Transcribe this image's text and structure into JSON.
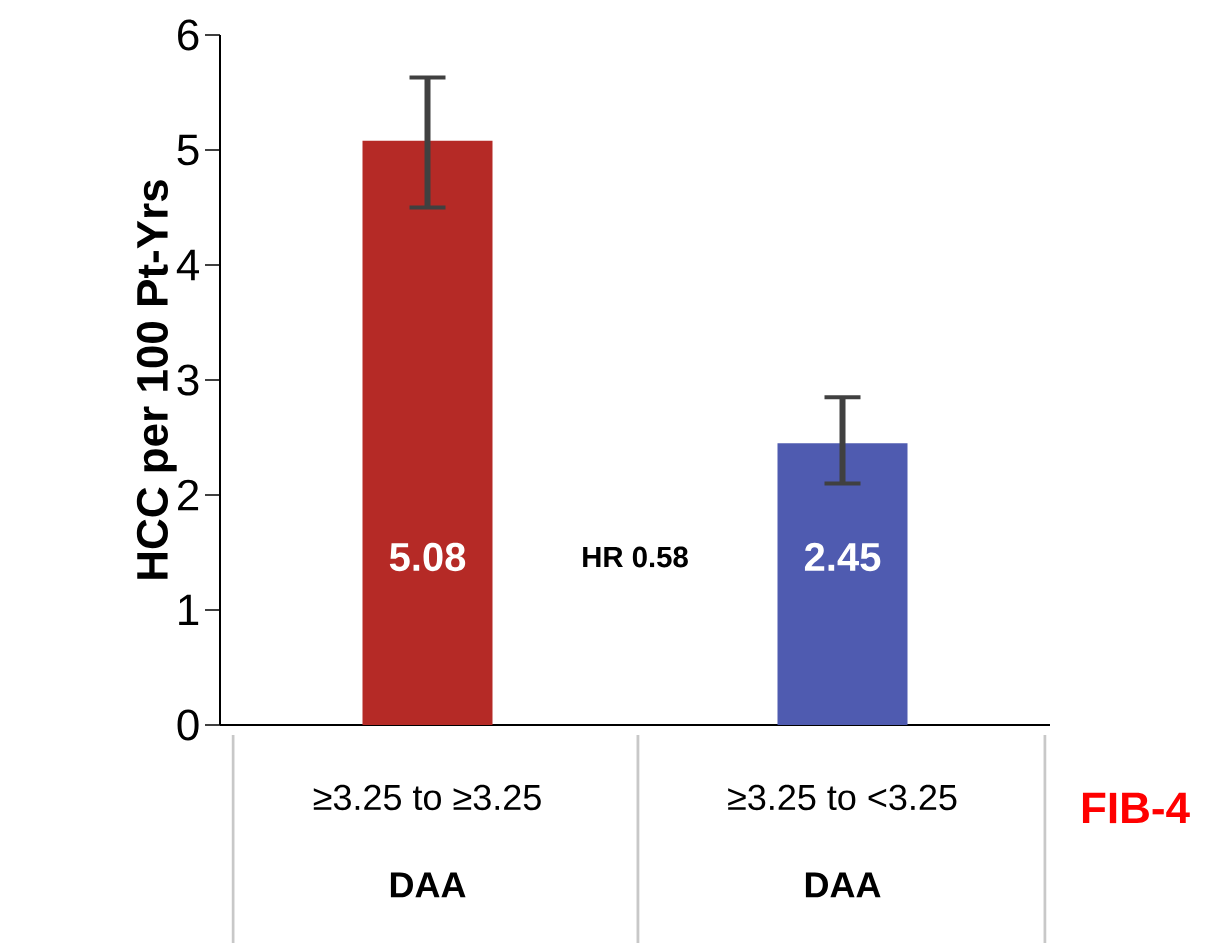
{
  "chart_data": {
    "type": "bar",
    "categories": [
      "≥3.25 to ≥3.25",
      "≥3.25 to <3.25"
    ],
    "values": [
      5.08,
      2.45
    ],
    "colors": [
      "#b52a26",
      "#4f5bb0"
    ],
    "errors": [
      [
        4.5,
        5.63
      ],
      [
        2.1,
        2.85
      ]
    ],
    "data_labels": true,
    "ylabel": "HCC per 100 Pt-Yrs",
    "xlabel": "FIB-4",
    "ylim": [
      0,
      6
    ],
    "yticks": [
      0,
      1,
      2,
      3,
      4,
      5,
      6
    ],
    "annotations": [
      "HR 0.58",
      "DAA",
      "DAA"
    ]
  }
}
